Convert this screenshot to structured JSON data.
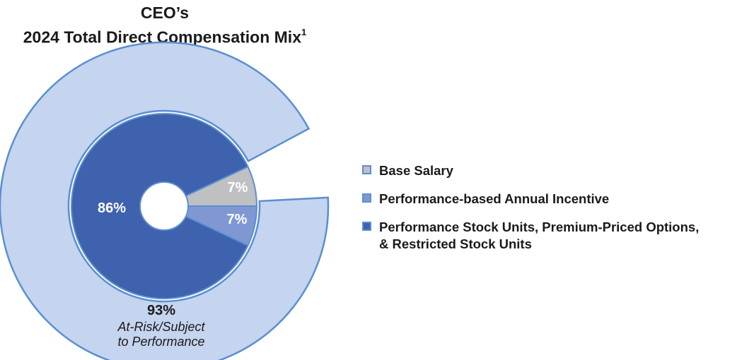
{
  "title_line1": "CEO’s",
  "title_line2": "2024 Total Direct Compensation Mix",
  "title_footnote": "1",
  "chart_data": {
    "type": "pie",
    "subtype": "nested-donut",
    "inner_ring": [
      {
        "name": "Base Salary",
        "value": 7,
        "label": "7%",
        "color": "#bfc0c2"
      },
      {
        "name": "Performance-based Annual Incentive",
        "value": 7,
        "label": "7%",
        "color": "#7f98d3"
      },
      {
        "name": "Performance Stock Units, Premium-Priced Options, & Restricted Stock Units",
        "value": 86,
        "label": "86%",
        "color": "#3f62ae"
      }
    ],
    "outer_ring": {
      "value": 93,
      "label": "93%",
      "caption_line1": "At-Risk/Subject",
      "caption_line2": "to Performance",
      "color": "#c5d4ef",
      "stroke": "#5b8fd0"
    },
    "legend": [
      {
        "label": "Base Salary",
        "color": "#bfc0c2"
      },
      {
        "label": "Performance-based Annual Incentive",
        "color": "#7f98d3"
      },
      {
        "label": "Performance Stock Units, Premium-Priced Options,\n& Restricted Stock Units",
        "color": "#3f62ae"
      }
    ],
    "legend_position": "right"
  }
}
